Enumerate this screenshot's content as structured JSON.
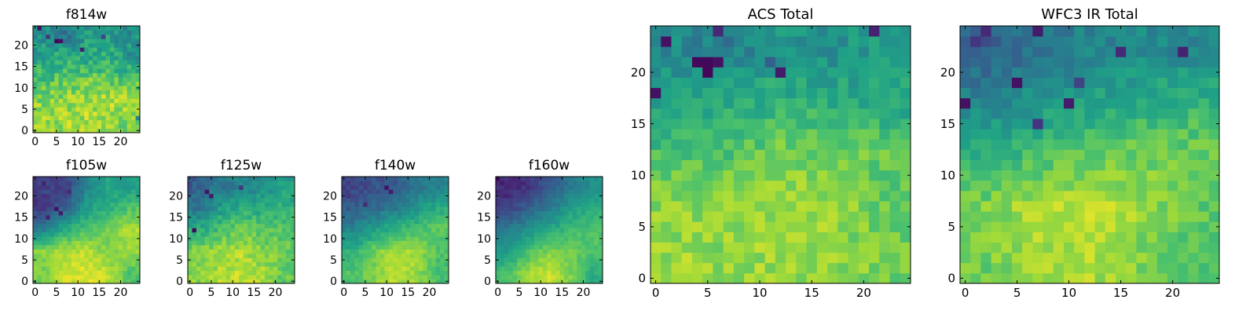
{
  "palette": [
    "#440154",
    "#46327e",
    "#365c8d",
    "#277f8e",
    "#1fa187",
    "#4ac16d",
    "#a0da39",
    "#fde725"
  ],
  "chart_data": [
    {
      "id": "f814w",
      "type": "heatmap",
      "title": "f814w",
      "size": 25,
      "xticks": [
        "0",
        "5",
        "10",
        "15",
        "20"
      ],
      "yticks": [
        "0",
        "5",
        "10",
        "15",
        "20"
      ],
      "value_range": [
        0,
        1
      ],
      "seed": 11,
      "noise": 0.22,
      "grid_summary_bottom_to_top": [
        [
          0.85,
          0.85,
          0.88,
          0.85,
          0.8
        ],
        [
          0.82,
          0.85,
          0.86,
          0.88,
          0.85
        ],
        [
          0.7,
          0.75,
          0.78,
          0.75,
          0.72
        ],
        [
          0.6,
          0.62,
          0.6,
          0.65,
          0.55
        ],
        [
          0.5,
          0.42,
          0.55,
          0.55,
          0.5
        ]
      ],
      "dark_spots": [
        [
          5,
          21,
          0.02
        ],
        [
          6,
          21,
          0.05
        ],
        [
          3,
          22,
          0.15
        ],
        [
          1,
          24,
          0.05
        ],
        [
          11,
          19,
          0.1
        ],
        [
          16,
          22,
          0.2
        ],
        [
          24,
          3,
          0.45
        ]
      ]
    },
    {
      "id": "f105w",
      "type": "heatmap",
      "title": "f105w",
      "size": 25,
      "xticks": [
        "0",
        "5",
        "10",
        "15",
        "20"
      ],
      "yticks": [
        "0",
        "5",
        "10",
        "15",
        "20"
      ],
      "value_range": [
        0,
        1
      ],
      "seed": 23,
      "noise": 0.1,
      "grid_summary_bottom_to_top": [
        [
          0.8,
          0.92,
          0.95,
          0.9,
          0.72
        ],
        [
          0.82,
          0.88,
          0.9,
          0.8,
          0.85
        ],
        [
          0.45,
          0.62,
          0.72,
          0.78,
          0.88
        ],
        [
          0.15,
          0.32,
          0.55,
          0.62,
          0.72
        ],
        [
          0.2,
          0.18,
          0.45,
          0.58,
          0.55
        ]
      ],
      "dark_spots": [
        [
          5,
          17,
          0.05
        ],
        [
          6,
          16,
          0.08
        ],
        [
          3,
          15,
          0.1
        ],
        [
          2,
          23,
          0.1
        ],
        [
          8,
          21,
          0.12
        ]
      ]
    },
    {
      "id": "f125w",
      "type": "heatmap",
      "title": "f125w",
      "size": 25,
      "xticks": [
        "0",
        "5",
        "10",
        "15",
        "20"
      ],
      "yticks": [
        "0",
        "5",
        "10",
        "15",
        "20"
      ],
      "value_range": [
        0,
        1
      ],
      "seed": 37,
      "noise": 0.14,
      "grid_summary_bottom_to_top": [
        [
          0.82,
          0.88,
          0.9,
          0.86,
          0.75
        ],
        [
          0.8,
          0.85,
          0.88,
          0.8,
          0.78
        ],
        [
          0.62,
          0.7,
          0.78,
          0.75,
          0.72
        ],
        [
          0.4,
          0.55,
          0.62,
          0.6,
          0.65
        ],
        [
          0.3,
          0.4,
          0.45,
          0.5,
          0.55
        ]
      ],
      "dark_spots": [
        [
          1,
          12,
          0.02
        ],
        [
          4,
          21,
          0.05
        ],
        [
          5,
          20,
          0.08
        ],
        [
          12,
          22,
          0.15
        ],
        [
          0,
          23,
          0.2
        ]
      ]
    },
    {
      "id": "f140w",
      "type": "heatmap",
      "title": "f140w",
      "size": 25,
      "xticks": [
        "0",
        "5",
        "10",
        "15",
        "20"
      ],
      "yticks": [
        "0",
        "5",
        "10",
        "15",
        "20"
      ],
      "value_range": [
        0,
        1
      ],
      "seed": 51,
      "noise": 0.1,
      "grid_summary_bottom_to_top": [
        [
          0.72,
          0.8,
          0.9,
          0.85,
          0.7
        ],
        [
          0.65,
          0.78,
          0.88,
          0.85,
          0.72
        ],
        [
          0.45,
          0.55,
          0.65,
          0.72,
          0.75
        ],
        [
          0.3,
          0.35,
          0.42,
          0.52,
          0.62
        ],
        [
          0.2,
          0.25,
          0.28,
          0.4,
          0.45
        ]
      ],
      "dark_spots": [
        [
          10,
          22,
          0.05
        ],
        [
          11,
          21,
          0.08
        ],
        [
          5,
          18,
          0.12
        ],
        [
          1,
          20,
          0.15
        ]
      ]
    },
    {
      "id": "f160w",
      "type": "heatmap",
      "title": "f160w",
      "size": 25,
      "xticks": [
        "0",
        "5",
        "10",
        "15",
        "20"
      ],
      "yticks": [
        "0",
        "5",
        "10",
        "15",
        "20"
      ],
      "value_range": [
        0,
        1
      ],
      "seed": 67,
      "noise": 0.08,
      "grid_summary_bottom_to_top": [
        [
          0.7,
          0.85,
          0.92,
          0.8,
          0.62
        ],
        [
          0.55,
          0.7,
          0.8,
          0.78,
          0.72
        ],
        [
          0.4,
          0.5,
          0.6,
          0.68,
          0.72
        ],
        [
          0.2,
          0.3,
          0.42,
          0.55,
          0.62
        ],
        [
          0.12,
          0.15,
          0.28,
          0.4,
          0.5
        ]
      ],
      "dark_spots": [
        [
          0,
          24,
          0.05
        ],
        [
          1,
          23,
          0.08
        ],
        [
          2,
          20,
          0.1
        ],
        [
          5,
          22,
          0.1
        ]
      ]
    },
    {
      "id": "acs-total",
      "type": "heatmap",
      "title": "ACS Total",
      "size": 25,
      "xticks": [
        "0",
        "5",
        "10",
        "15",
        "20"
      ],
      "yticks": [
        "0",
        "5",
        "10",
        "15",
        "20"
      ],
      "value_range": [
        0,
        1
      ],
      "seed": 83,
      "noise": 0.16,
      "grid_summary_bottom_to_top": [
        [
          0.85,
          0.82,
          0.85,
          0.82,
          0.78
        ],
        [
          0.82,
          0.85,
          0.86,
          0.85,
          0.75
        ],
        [
          0.7,
          0.72,
          0.78,
          0.8,
          0.75
        ],
        [
          0.55,
          0.62,
          0.65,
          0.62,
          0.6
        ],
        [
          0.48,
          0.42,
          0.52,
          0.5,
          0.55
        ]
      ],
      "dark_spots": [
        [
          4,
          21,
          0.02
        ],
        [
          5,
          21,
          0.02
        ],
        [
          6,
          21,
          0.05
        ],
        [
          5,
          20,
          0.02
        ],
        [
          1,
          23,
          0.05
        ],
        [
          12,
          20,
          0.08
        ],
        [
          0,
          18,
          0.05
        ],
        [
          21,
          24,
          0.1
        ],
        [
          6,
          24,
          0.12
        ],
        [
          11,
          21,
          0.3
        ]
      ]
    },
    {
      "id": "wfc3-ir-total",
      "type": "heatmap",
      "title": "WFC3 IR Total",
      "size": 25,
      "xticks": [
        "0",
        "5",
        "10",
        "15",
        "20"
      ],
      "yticks": [
        "0",
        "5",
        "10",
        "15",
        "20"
      ],
      "value_range": [
        0,
        1
      ],
      "seed": 97,
      "noise": 0.14,
      "grid_summary_bottom_to_top": [
        [
          0.78,
          0.85,
          0.88,
          0.8,
          0.72
        ],
        [
          0.8,
          0.88,
          0.9,
          0.85,
          0.75
        ],
        [
          0.62,
          0.7,
          0.75,
          0.78,
          0.78
        ],
        [
          0.45,
          0.52,
          0.58,
          0.62,
          0.65
        ],
        [
          0.3,
          0.38,
          0.45,
          0.48,
          0.45
        ]
      ],
      "dark_spots": [
        [
          0,
          17,
          0.05
        ],
        [
          10,
          17,
          0.08
        ],
        [
          5,
          19,
          0.05
        ],
        [
          7,
          24,
          0.08
        ],
        [
          1,
          23,
          0.15
        ],
        [
          2,
          24,
          0.12
        ],
        [
          15,
          22,
          0.12
        ],
        [
          21,
          22,
          0.1
        ],
        [
          7,
          15,
          0.15
        ],
        [
          11,
          19,
          0.2
        ]
      ]
    }
  ]
}
